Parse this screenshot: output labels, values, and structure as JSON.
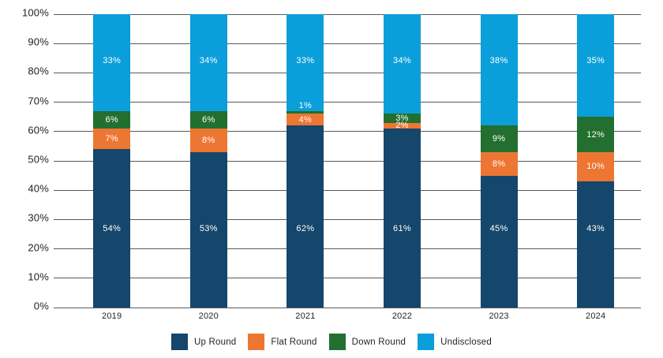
{
  "chart_data": {
    "type": "bar",
    "stacked": true,
    "title": "",
    "categories": [
      "2019",
      "2020",
      "2021",
      "2022",
      "2023",
      "2024"
    ],
    "series": [
      {
        "name": "Up Round",
        "color": "#15466b",
        "values": [
          54,
          53,
          62,
          61,
          45,
          43
        ]
      },
      {
        "name": "Flat Round",
        "color": "#ee7633",
        "values": [
          7,
          8,
          4,
          2,
          8,
          10
        ]
      },
      {
        "name": "Down Round",
        "color": "#226f30",
        "values": [
          6,
          6,
          1,
          3,
          9,
          12
        ]
      },
      {
        "name": "Undisclosed",
        "color": "#0a9fda",
        "values": [
          33,
          34,
          33,
          34,
          38,
          35
        ]
      }
    ],
    "value_suffix": "%",
    "y_tick_labels": [
      "100%",
      "90%",
      "80%",
      "70%",
      "60%",
      "50%",
      "40%",
      "30%",
      "20%",
      "10%",
      "0%"
    ],
    "ylim": [
      0,
      100
    ],
    "grid": true,
    "legend_position": "bottom",
    "legend_labels": [
      "Up Round",
      "Flat Round",
      "Down Round",
      "Undisclosed"
    ]
  },
  "colors": {
    "background": "#ffffff",
    "gridline": "#58595b",
    "axis_text": "#231f20",
    "bar_label_text": "#ffffff"
  }
}
